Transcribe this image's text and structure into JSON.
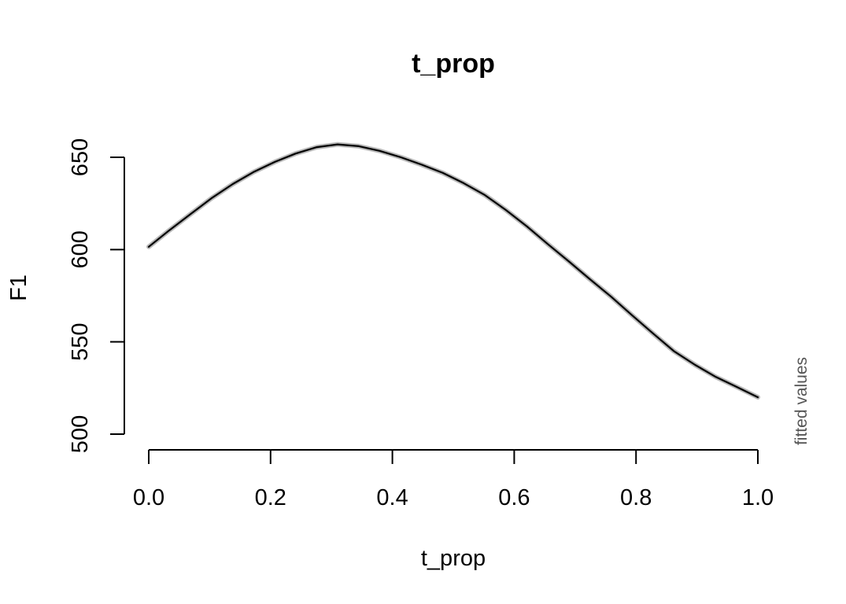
{
  "chart_data": {
    "type": "line",
    "title": "t_prop",
    "xlabel": "t_prop",
    "ylabel": "F1",
    "side_note": "fitted values",
    "xlim": [
      0,
      1
    ],
    "ylim": [
      500,
      650
    ],
    "x_ticks": [
      "0.0",
      "0.2",
      "0.4",
      "0.6",
      "0.8",
      "1.0"
    ],
    "y_ticks": [
      "500",
      "550",
      "600",
      "650"
    ],
    "grid": false,
    "series": [
      {
        "x": [
          0.0,
          0.034,
          0.069,
          0.103,
          0.138,
          0.172,
          0.207,
          0.241,
          0.276,
          0.31,
          0.345,
          0.379,
          0.414,
          0.448,
          0.483,
          0.517,
          0.552,
          0.586,
          0.621,
          0.655,
          0.69,
          0.724,
          0.759,
          0.793,
          0.828,
          0.862,
          0.897,
          0.931,
          0.966,
          1.0
        ],
        "y": [
          601.5,
          610.5,
          619.3,
          627.8,
          635.5,
          642.0,
          647.5,
          652.0,
          655.5,
          657.0,
          656.0,
          653.5,
          650.0,
          646.0,
          641.5,
          636.0,
          629.5,
          621.5,
          612.5,
          603.0,
          593.5,
          584.0,
          574.5,
          564.5,
          554.5,
          545.0,
          537.5,
          531.0,
          525.5,
          520.0
        ]
      }
    ]
  }
}
